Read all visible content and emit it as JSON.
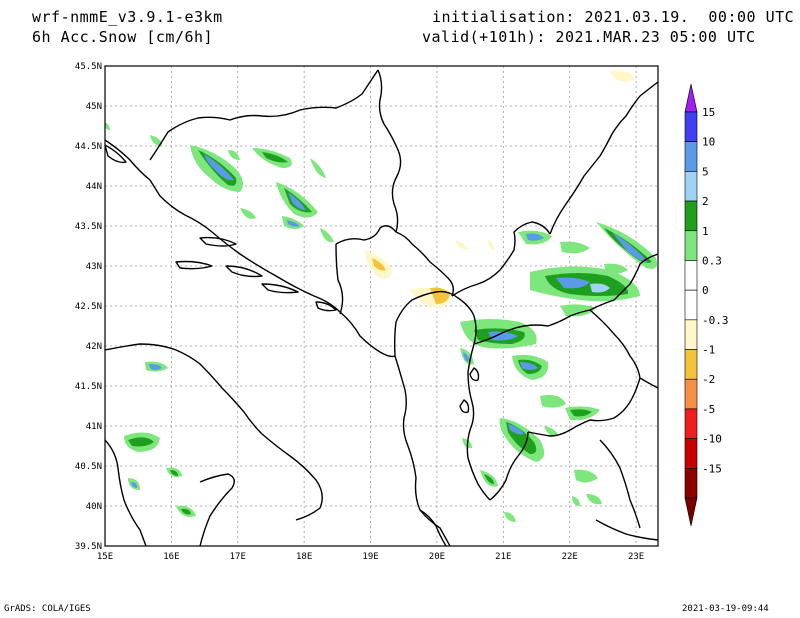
{
  "header": {
    "model": "wrf-nmmE_v3.9.1-e3km",
    "field": "6h Acc.Snow [cm/6h]",
    "init": "initialisation: 2021.03.19.  00:00 UTC",
    "valid": "valid(+101h): 2021.MAR.23 05:00 UTC"
  },
  "map": {
    "lon_ticks": [
      "15E",
      "16E",
      "17E",
      "18E",
      "19E",
      "20E",
      "21E",
      "22E",
      "23E"
    ],
    "lat_ticks": [
      "39.5N",
      "40N",
      "40.5N",
      "41N",
      "41.5N",
      "42N",
      "42.5N",
      "43N",
      "43.5N",
      "44N",
      "44.5N",
      "45N",
      "45.5N"
    ],
    "lon_range": [
      15,
      23.33
    ],
    "lat_range": [
      39.5,
      45.5
    ],
    "grid": true,
    "colors": {
      "coast": "#000000",
      "grid": "#999999",
      "light_green": "#7de67d",
      "dark_green": "#1ea01e",
      "light_blue": "#9fd2f5",
      "blue": "#5a9ae6",
      "pale_yellow": "#fff7c8",
      "yellow": "#f5c23c"
    }
  },
  "colorbar": {
    "labels": [
      "15",
      "10",
      "5",
      "2",
      "1",
      "0.3",
      "0",
      "-0.3",
      "-1",
      "-2",
      "-5",
      "-10",
      "-15"
    ],
    "colors": [
      "#4040f0",
      "#5a9ae6",
      "#9fd2f5",
      "#1ea01e",
      "#7de67d",
      "#ffffff",
      "#ffffff",
      "#fff7c8",
      "#f5c23c",
      "#f59046",
      "#f01e1e",
      "#c80000",
      "#8c0000"
    ],
    "top_arrow_color": "#a020f0",
    "bottom_arrow_color": "#780000"
  },
  "footer": {
    "left": "GrADS: COLA/IGES",
    "right": "2021-03-19-09:44"
  }
}
